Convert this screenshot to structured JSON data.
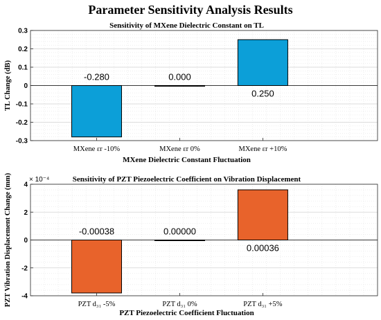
{
  "figure_title": "Parameter Sensitivity Analysis Results",
  "chart_data": [
    {
      "type": "bar",
      "title": "Sensitivity of MXene Dielectric Constant on TL",
      "xlabel": "MXene Dielectric Constant Fluctuation",
      "ylabel": "TL Change (dB)",
      "categories": [
        "MXene εr -10%",
        "MXene εr 0%",
        "MXene εr +10%"
      ],
      "values": [
        -0.28,
        0.0,
        0.25
      ],
      "data_labels": [
        "-0.280",
        "0.000",
        "0.250"
      ],
      "ylim": [
        -0.3,
        0.3
      ],
      "yticks": [
        -0.3,
        -0.2,
        -0.1,
        0,
        0.1,
        0.2,
        0.3
      ],
      "ytick_labels": [
        "-0.3",
        "-0.2",
        "-0.1",
        "0",
        "0.1",
        "0.2",
        "0.3"
      ],
      "exponent_label": "",
      "bar_color": "#0C9FD8",
      "grid": true,
      "legend": "none"
    },
    {
      "type": "bar",
      "title": "Sensitivity of PZT Piezoelectric Coefficient on Vibration Displacement",
      "xlabel": "PZT Piezoelectric Coefficient Fluctuation",
      "ylabel": "PZT Vibration Displacement Change (mm)",
      "categories": [
        "PZT d₃₁ -5%",
        "PZT d₃₁ 0%",
        "PZT d₃₁ +5%"
      ],
      "values": [
        -0.00038,
        0.0,
        0.00036
      ],
      "data_labels": [
        "-0.00038",
        "0.00000",
        "0.00036"
      ],
      "ylim": [
        -0.0004,
        0.0004
      ],
      "yticks": [
        -0.0004,
        -0.0002,
        0,
        0.0002,
        0.0004
      ],
      "ytick_labels": [
        "-4",
        "-2",
        "0",
        "2",
        "4"
      ],
      "exponent_label": "× 10⁻⁴",
      "bar_color": "#E8632B",
      "grid": true,
      "legend": "none"
    }
  ]
}
